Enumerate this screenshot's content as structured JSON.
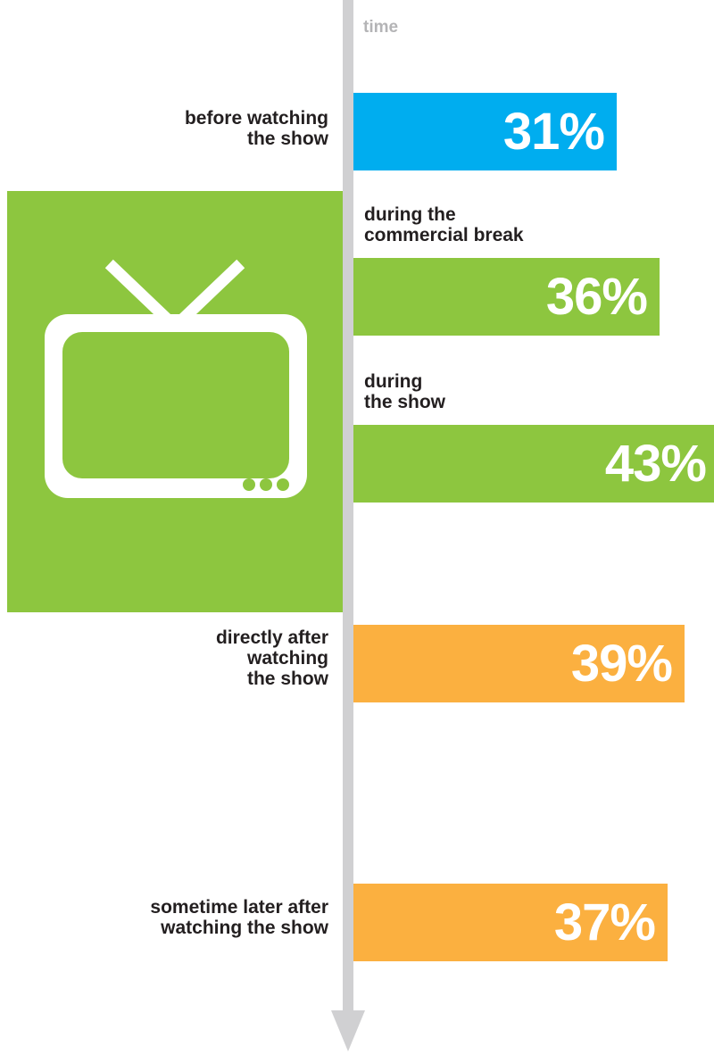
{
  "colors": {
    "blue": "#00adef",
    "green": "#8dc63f",
    "orange": "#fbb040",
    "timeline": "#d0d0d2",
    "label": "#231f20",
    "time_label": "#b4b4b6"
  },
  "tv_icon": "tv-icon",
  "axis_label": "time",
  "chart_data": {
    "type": "bar",
    "orientation": "horizontal",
    "categories": [
      "before watching the show",
      "during the commercial break",
      "during the show",
      "directly after watching the show",
      "sometime later after watching the show"
    ],
    "values": [
      31,
      36,
      43,
      39,
      37
    ],
    "value_labels": [
      "31%",
      "36%",
      "43%",
      "39%",
      "37%"
    ],
    "ylabel": "time",
    "label_lines": [
      "before watching\nthe show",
      "during the\ncommercial break",
      "during\nthe show",
      "directly after\nwatching\nthe show",
      "sometime later after\nwatching the show"
    ],
    "bar_colors": [
      "#00adef",
      "#8dc63f",
      "#8dc63f",
      "#fbb040",
      "#fbb040"
    ],
    "label_sides": [
      "left",
      "right",
      "right",
      "left",
      "left"
    ]
  }
}
